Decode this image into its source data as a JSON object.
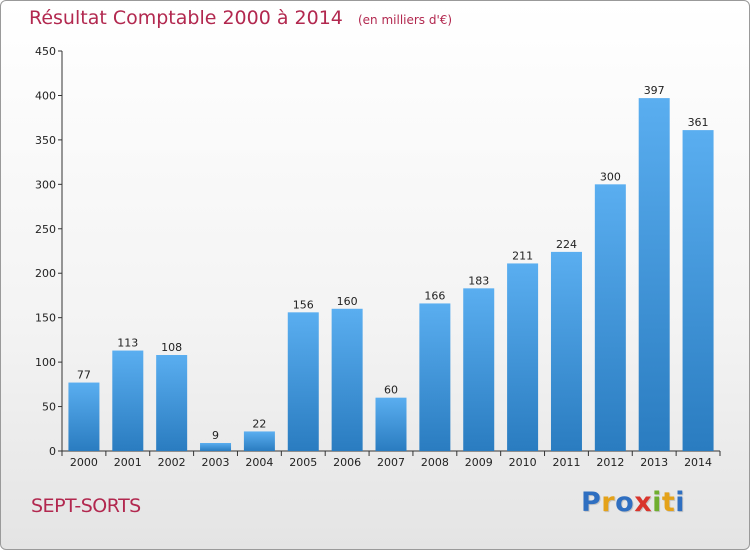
{
  "header": {
    "title": "Résultat Comptable 2000 à 2014",
    "unit": "(en milliers d'€)"
  },
  "footer": {
    "commune": "SEPT-SORTS",
    "logo": "Proxiti"
  },
  "colors": {
    "title": "#b2284f",
    "bar_top": "#5aaef0",
    "bar_bottom": "#2a7cc0",
    "grid": "#dddddd"
  },
  "chart_data": {
    "type": "bar",
    "title": "Résultat Comptable 2000 à 2014",
    "subtitle": "(en milliers d'€)",
    "xlabel": "",
    "ylabel": "",
    "categories": [
      "2000",
      "2001",
      "2002",
      "2003",
      "2004",
      "2005",
      "2006",
      "2007",
      "2008",
      "2009",
      "2010",
      "2011",
      "2012",
      "2013",
      "2014"
    ],
    "values": [
      77,
      113,
      108,
      9,
      22,
      156,
      160,
      60,
      166,
      183,
      211,
      224,
      300,
      397,
      361
    ],
    "ylim": [
      0,
      450
    ],
    "yticks": [
      0,
      50,
      100,
      150,
      200,
      250,
      300,
      350,
      400,
      450
    ],
    "grid": false,
    "data_labels": true
  }
}
